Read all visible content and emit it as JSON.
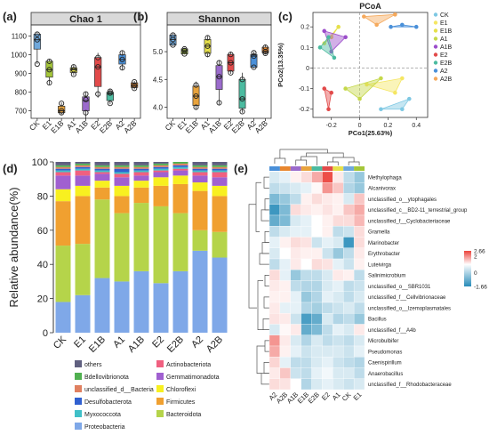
{
  "chart_data": [
    {
      "panel": "(a)",
      "type": "box",
      "title": "Chao 1",
      "categories": [
        "CK",
        "E1",
        "E1B",
        "A1",
        "A1B",
        "E2",
        "E2B",
        "A2",
        "A2B"
      ],
      "colors": [
        "#6fa8dc",
        "#a4c639",
        "#e8a33d",
        "#e6e04a",
        "#9b6bcc",
        "#e24a4a",
        "#4bbba0",
        "#4a90d9",
        "#e8862e"
      ],
      "yticks": [
        700,
        800,
        900,
        1000,
        1100
      ],
      "ylim": [
        660,
        1150
      ],
      "boxes": [
        {
          "min": 950,
          "q1": 1030,
          "median": 1080,
          "q3": 1110,
          "max": 1120,
          "points": [
            950,
            1080,
            1110
          ]
        },
        {
          "min": 840,
          "q1": 880,
          "median": 920,
          "q3": 965,
          "max": 975,
          "points": [
            850,
            920,
            965
          ]
        },
        {
          "min": 680,
          "q1": 690,
          "median": 700,
          "q3": 725,
          "max": 745,
          "points": [
            690,
            700,
            740
          ]
        },
        {
          "min": 890,
          "q1": 905,
          "median": 920,
          "q3": 930,
          "max": 945,
          "points": [
            895,
            920,
            935
          ]
        },
        {
          "min": 655,
          "q1": 700,
          "median": 755,
          "q3": 775,
          "max": 800,
          "points": [
            690,
            760,
            790
          ]
        },
        {
          "min": 770,
          "q1": 830,
          "median": 935,
          "q3": 985,
          "max": 1010,
          "points": [
            790,
            935,
            985
          ]
        },
        {
          "min": 735,
          "q1": 755,
          "median": 790,
          "q3": 800,
          "max": 815,
          "points": [
            740,
            795,
            805
          ]
        },
        {
          "min": 920,
          "q1": 950,
          "median": 975,
          "q3": 1000,
          "max": 1020,
          "points": [
            930,
            975,
            1010
          ]
        },
        {
          "min": 815,
          "q1": 825,
          "median": 835,
          "q3": 850,
          "max": 860,
          "points": [
            820,
            835,
            855
          ]
        }
      ]
    },
    {
      "panel": "(b)",
      "type": "box",
      "title": "Shannon",
      "categories": [
        "CK",
        "E1",
        "E1B",
        "A1",
        "A1B",
        "E2",
        "E2B",
        "A2",
        "A2B"
      ],
      "colors": [
        "#6fa8dc",
        "#a4c639",
        "#e8a33d",
        "#e6e04a",
        "#9b6bcc",
        "#e24a4a",
        "#4bbba0",
        "#4a90d9",
        "#e8862e"
      ],
      "yticks": [
        4.0,
        4.5,
        5.0
      ],
      "yticklabels": [
        "4.0",
        "4.5",
        "5.0"
      ],
      "ylim": [
        3.8,
        5.45
      ],
      "boxes": [
        {
          "min": 5.1,
          "q1": 5.12,
          "median": 5.22,
          "q3": 5.3,
          "max": 5.33,
          "points": [
            5.12,
            5.22,
            5.3
          ]
        },
        {
          "min": 4.95,
          "q1": 4.96,
          "median": 5.02,
          "q3": 5.05,
          "max": 5.06,
          "points": [
            4.96,
            5.02,
            5.05
          ]
        },
        {
          "min": 3.97,
          "q1": 4.03,
          "median": 4.2,
          "q3": 4.38,
          "max": 4.46,
          "points": [
            4.0,
            4.2,
            4.4
          ]
        },
        {
          "min": 4.9,
          "q1": 4.97,
          "median": 5.1,
          "q3": 5.22,
          "max": 5.28,
          "points": [
            4.95,
            5.1,
            5.25
          ]
        },
        {
          "min": 4.05,
          "q1": 4.32,
          "median": 4.55,
          "q3": 4.75,
          "max": 4.85,
          "points": [
            4.08,
            4.55,
            4.8
          ]
        },
        {
          "min": 4.6,
          "q1": 4.65,
          "median": 4.8,
          "q3": 4.95,
          "max": 5.0,
          "points": [
            4.62,
            4.8,
            4.95
          ]
        },
        {
          "min": 3.9,
          "q1": 3.98,
          "median": 4.15,
          "q3": 4.5,
          "max": 4.62,
          "points": [
            3.92,
            4.15,
            4.5
          ]
        },
        {
          "min": 4.7,
          "q1": 4.72,
          "median": 4.92,
          "q3": 4.95,
          "max": 5.0,
          "points": [
            4.72,
            4.92,
            4.98
          ]
        },
        {
          "min": 4.95,
          "q1": 4.98,
          "median": 5.0,
          "q3": 5.08,
          "max": 5.12,
          "points": [
            4.97,
            5.0,
            5.08
          ]
        }
      ]
    },
    {
      "panel": "(c)",
      "type": "scatter",
      "title": "PCoA",
      "xlabel": "PCo1(25.63%)",
      "ylabel": "PCo2(13.35%)",
      "xlim": [
        -0.33,
        0.48
      ],
      "ylim": [
        -0.24,
        0.27
      ],
      "xticks": [
        -0.2,
        0,
        0.2,
        0.4
      ],
      "xticklabels": [
        "-0.2",
        "0",
        "0.2",
        "0.4"
      ],
      "yticks": [
        -0.2,
        -0.1,
        0,
        0.1,
        0.2
      ],
      "yticklabels": [
        "-0.2",
        "-0.1",
        "0",
        "0.1",
        "0.2"
      ],
      "series": [
        {
          "name": "CK",
          "color": "#7ec8e3",
          "points": [
            [
              0.15,
              -0.2
            ],
            [
              0.3,
              -0.2
            ],
            [
              0.35,
              -0.15
            ]
          ]
        },
        {
          "name": "E1",
          "color": "#f5e663",
          "points": [
            [
              0.05,
              -0.08
            ],
            [
              0.3,
              -0.05
            ],
            [
              0.25,
              -0.12
            ]
          ]
        },
        {
          "name": "E1B",
          "color": "#e6e04a",
          "points": [
            [
              -0.2,
              0.15
            ],
            [
              -0.15,
              0.2
            ],
            [
              -0.25,
              0.12
            ]
          ]
        },
        {
          "name": "A1",
          "color": "#c5d84a",
          "points": [
            [
              -0.1,
              -0.1
            ],
            [
              0.15,
              -0.05
            ],
            [
              0.0,
              -0.15
            ]
          ]
        },
        {
          "name": "A1B",
          "color": "#9b4dca",
          "points": [
            [
              -0.25,
              0.18
            ],
            [
              -0.1,
              0.15
            ],
            [
              -0.2,
              0.08
            ]
          ]
        },
        {
          "name": "E2",
          "color": "#e24a4a",
          "points": [
            [
              -0.25,
              -0.1
            ],
            [
              -0.2,
              -0.12
            ],
            [
              -0.22,
              -0.2
            ]
          ]
        },
        {
          "name": "E2B",
          "color": "#4bbba0",
          "points": [
            [
              -0.28,
              0.1
            ],
            [
              -0.22,
              0.15
            ],
            [
              -0.18,
              0.05
            ]
          ]
        },
        {
          "name": "A2",
          "color": "#4a90d9",
          "points": [
            [
              0.22,
              0.2
            ],
            [
              0.3,
              0.21
            ],
            [
              0.4,
              0.2
            ]
          ]
        },
        {
          "name": "A2B",
          "color": "#f5a95c",
          "points": [
            [
              0.03,
              0.25
            ],
            [
              0.12,
              0.21
            ],
            [
              0.25,
              0.26
            ]
          ]
        }
      ]
    },
    {
      "panel": "(d)",
      "type": "bar",
      "stacked": true,
      "ylabel": "Relative abundance(%)",
      "ylim": [
        0,
        100
      ],
      "yticks": [
        0,
        20,
        40,
        60,
        80,
        100
      ],
      "categories": [
        "CK",
        "E1",
        "E1B",
        "A1",
        "A1B",
        "E2",
        "E2B",
        "A2",
        "A2B"
      ],
      "series": [
        {
          "name": "Proteobacteria",
          "color": "#7fa8e8",
          "values": [
            18,
            22,
            32,
            30,
            36,
            29,
            36,
            48,
            44
          ]
        },
        {
          "name": "Bacteroidota",
          "color": "#b5d44a",
          "values": [
            33,
            30,
            46,
            40,
            40,
            45,
            34,
            12,
            15
          ]
        },
        {
          "name": "Firmicutes",
          "color": "#f0a030",
          "values": [
            26,
            28,
            7,
            10,
            9,
            12,
            17,
            23,
            21
          ]
        },
        {
          "name": "Chloroflexi",
          "color": "#f8f020",
          "values": [
            7,
            6,
            4,
            6,
            4,
            5,
            5,
            5,
            6
          ]
        },
        {
          "name": "Gemmatimonadota",
          "color": "#a060d0",
          "values": [
            8,
            6,
            4,
            5,
            3,
            3,
            3,
            4,
            5
          ]
        },
        {
          "name": "Actinobacteriota",
          "color": "#f06080",
          "values": [
            2,
            3,
            1,
            2,
            2,
            1,
            1,
            2,
            3
          ]
        },
        {
          "name": "Myxococcota",
          "color": "#40c0c8",
          "values": [
            1,
            1,
            1,
            1,
            1,
            1,
            1,
            1,
            1
          ]
        },
        {
          "name": "Desulfobacterota",
          "color": "#3060d0",
          "values": [
            1,
            1,
            1,
            2,
            1,
            1,
            1,
            1,
            1
          ]
        },
        {
          "name": "unclassified_d__Bacteria",
          "color": "#e08060",
          "values": [
            1,
            1,
            1,
            1,
            1,
            1,
            1,
            1,
            1
          ]
        },
        {
          "name": "Bdellovibrionota",
          "color": "#50b050",
          "values": [
            1,
            1,
            1,
            1,
            1,
            1,
            1,
            1,
            1
          ]
        },
        {
          "name": "others",
          "color": "#606080",
          "values": [
            2,
            1,
            2,
            2,
            2,
            1,
            0,
            2,
            2
          ]
        }
      ],
      "legend_order": [
        "others",
        "Actinobacteriota",
        "Bdellovibrionota",
        "Gemmatimonadota",
        "unclassified_d__Bacteria",
        "Chloroflexi",
        "Desulfobacterota",
        "Firmicutes",
        "Myxococcota",
        "Bacteroidota",
        "Proteobacteria"
      ]
    },
    {
      "panel": "(e)",
      "type": "heatmap",
      "columns": [
        "A2",
        "A2B",
        "A1B",
        "E1B",
        "E2B",
        "E2",
        "A1",
        "CK",
        "E1"
      ],
      "column_colors": [
        "#4a90d9",
        "#e8862e",
        "#9b6bcc",
        "#e8a33d",
        "#4bbba0",
        "#e24a4a",
        "#e6e04a",
        "#6fa8dc",
        "#a4c639"
      ],
      "rows": [
        "Methylophaga",
        "Alcanivorax",
        "unclassified_o__ytophagales",
        "unclassified_c__BD2-11_terrestrial_group",
        "unclassified_f__Cyclobacteriaceae",
        "Gramella",
        "Marinobacter",
        "Erythrobacter",
        "Luteivirga",
        "Salinimicrobium",
        "unclassified_o__SBR1031",
        "unclassified_f__Cellvibrionaceae",
        "unclassified_o__Izemoplasmatales",
        "Bacillus",
        "unclassified_f__A4b",
        "Microbulbifer",
        "Pseudomonas",
        "Caenispirillum",
        "Anaerobacillus",
        "unclassified_f__Rhodobacteraceae"
      ],
      "colorbar": {
        "min": -1.66,
        "max": 2.66,
        "labels": [
          "2.66",
          "2",
          "0",
          "-1.66"
        ],
        "ticks": [
          2.66,
          2,
          0,
          -1.66
        ]
      },
      "values": [
        [
          -0.3,
          -0.2,
          0.2,
          0.5,
          1.2,
          2.5,
          0.3,
          -0.5,
          -0.8
        ],
        [
          -0.5,
          -0.4,
          -0.3,
          -0.2,
          0.1,
          1.5,
          0.8,
          -0.6,
          -0.8
        ],
        [
          -1.0,
          -0.8,
          -0.5,
          0.2,
          0.5,
          0.3,
          0.2,
          -0.3,
          0.8
        ],
        [
          -1.5,
          -1.0,
          0.5,
          0.3,
          0.2,
          0.4,
          0.2,
          0.8,
          1.2
        ],
        [
          -1.2,
          -1.0,
          -0.3,
          -0.2,
          0.0,
          0.2,
          0.5,
          0.5,
          1.0
        ],
        [
          -0.5,
          -0.3,
          -0.2,
          -0.2,
          0.0,
          0.2,
          -0.5,
          -0.4,
          0.5
        ],
        [
          -0.2,
          0.2,
          0.5,
          0.4,
          -0.4,
          -0.2,
          -0.3,
          -1.5,
          0.5
        ],
        [
          -0.3,
          0.0,
          0.3,
          0.2,
          0.2,
          -0.4,
          -0.8,
          -0.5,
          0.3
        ],
        [
          -0.5,
          -0.2,
          0.3,
          0.0,
          0.5,
          0.4,
          -0.2,
          -0.4,
          0.2
        ],
        [
          0.5,
          -0.2,
          -0.8,
          -0.5,
          -0.5,
          -0.3,
          0.3,
          0.2,
          -0.5
        ],
        [
          0.3,
          0.2,
          -0.5,
          -0.6,
          -0.6,
          -0.3,
          -0.2,
          -0.5,
          -0.4
        ],
        [
          0.2,
          0.2,
          -0.2,
          -0.8,
          -0.6,
          -0.2,
          -0.3,
          -0.5,
          -0.3
        ],
        [
          0.3,
          -0.2,
          -0.2,
          -0.6,
          -0.7,
          -0.5,
          -0.4,
          -0.3,
          -0.5
        ],
        [
          0.4,
          0.3,
          -0.4,
          -1.4,
          -1.2,
          -0.3,
          -0.6,
          -0.5,
          -0.8
        ],
        [
          -0.3,
          0.1,
          0.3,
          -1.2,
          -1.0,
          -0.5,
          -0.2,
          -0.3,
          0.3
        ],
        [
          1.5,
          0.3,
          -0.3,
          -0.6,
          -0.3,
          -0.5,
          -0.4,
          -0.5,
          -0.3
        ],
        [
          1.2,
          0.2,
          -0.2,
          -0.4,
          -0.3,
          -0.3,
          -0.3,
          -0.4,
          -0.2
        ],
        [
          0.6,
          -0.2,
          -0.5,
          -0.5,
          -0.3,
          -0.2,
          -0.4,
          -0.5,
          -0.6
        ],
        [
          0.3,
          0.8,
          -0.4,
          -0.5,
          -0.2,
          -0.1,
          -0.3,
          -0.3,
          -0.5
        ],
        [
          0.5,
          0.4,
          0.0,
          -0.6,
          -0.3,
          -0.2,
          -0.3,
          -0.4,
          -0.3
        ]
      ]
    }
  ]
}
